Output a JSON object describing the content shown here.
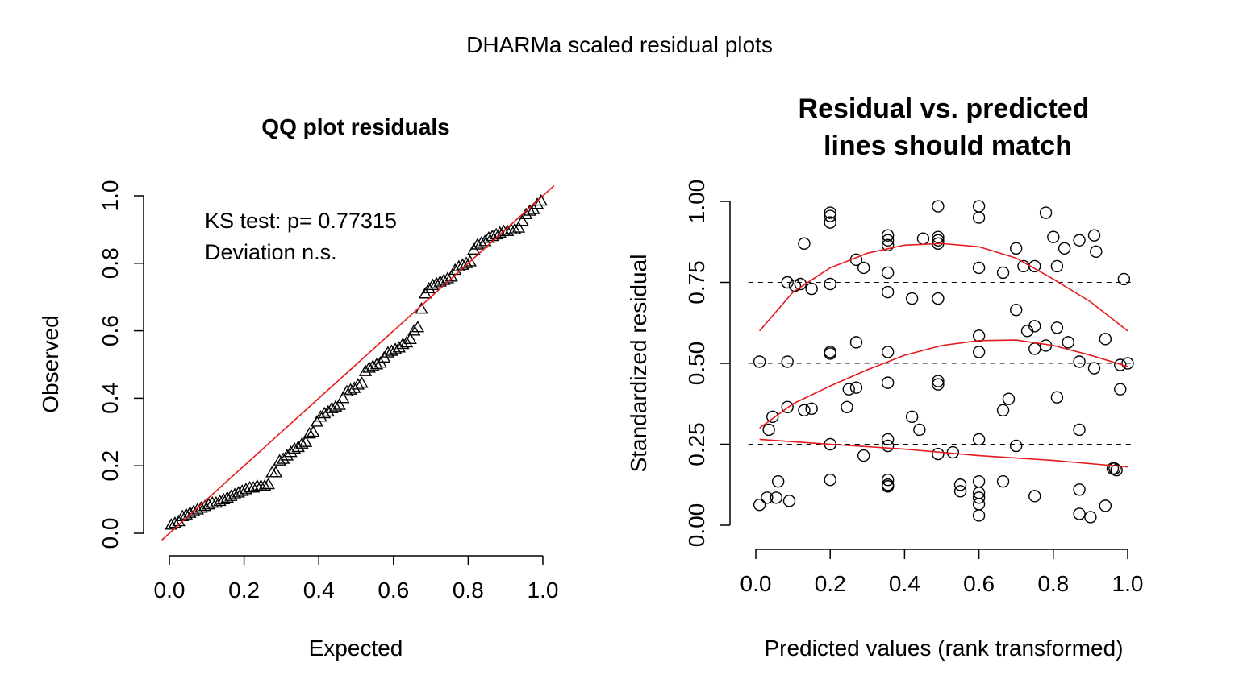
{
  "figure": {
    "title": "DHARMa scaled residual plots"
  },
  "chart_data": [
    {
      "type": "scatter",
      "title": "QQ plot residuals",
      "xlabel": "Expected",
      "ylabel": "Observed",
      "xlim": [
        0,
        1
      ],
      "ylim": [
        0,
        1
      ],
      "x_ticks": [
        "0.0",
        "0.2",
        "0.4",
        "0.6",
        "0.8",
        "1.0"
      ],
      "y_ticks": [
        "0.0",
        "0.2",
        "0.4",
        "0.6",
        "0.8",
        "1.0"
      ],
      "annotations": [
        "KS test: p= 0.77315",
        "Deviation  n.s."
      ],
      "marker": "triangle",
      "reference_line": {
        "from": [
          0,
          0
        ],
        "to": [
          1,
          1
        ],
        "color": "#e41a1c"
      },
      "qq_points_observed": [
        0.025,
        0.03,
        0.035,
        0.05,
        0.055,
        0.06,
        0.065,
        0.07,
        0.075,
        0.08,
        0.085,
        0.09,
        0.09,
        0.095,
        0.1,
        0.105,
        0.11,
        0.115,
        0.12,
        0.125,
        0.13,
        0.135,
        0.135,
        0.14,
        0.14,
        0.14,
        0.145,
        0.18,
        0.18,
        0.215,
        0.22,
        0.23,
        0.24,
        0.25,
        0.255,
        0.265,
        0.27,
        0.295,
        0.3,
        0.33,
        0.345,
        0.355,
        0.36,
        0.37,
        0.375,
        0.38,
        0.4,
        0.42,
        0.425,
        0.43,
        0.44,
        0.445,
        0.48,
        0.49,
        0.495,
        0.5,
        0.505,
        0.52,
        0.535,
        0.54,
        0.545,
        0.55,
        0.56,
        0.565,
        0.575,
        0.6,
        0.61,
        0.665,
        0.71,
        0.725,
        0.735,
        0.74,
        0.745,
        0.75,
        0.755,
        0.76,
        0.78,
        0.79,
        0.795,
        0.8,
        0.805,
        0.84,
        0.855,
        0.86,
        0.865,
        0.875,
        0.88,
        0.885,
        0.89,
        0.895,
        0.895,
        0.9,
        0.9,
        0.905,
        0.925,
        0.945,
        0.955,
        0.96,
        0.975,
        0.985
      ]
    },
    {
      "type": "scatter",
      "title": "Residual vs. predicted\nlines should match",
      "title_lines": [
        "Residual vs. predicted",
        "lines should match"
      ],
      "xlabel": "Predicted values (rank transformed)",
      "ylabel": "Standardized residual",
      "xlim": [
        0,
        1
      ],
      "ylim": [
        0,
        1
      ],
      "x_ticks": [
        "0.0",
        "0.2",
        "0.4",
        "0.6",
        "0.8",
        "1.0"
      ],
      "y_ticks": [
        "0.00",
        "0.25",
        "0.50",
        "0.75",
        "1.00"
      ],
      "reference_lines_y": [
        0.25,
        0.5,
        0.75
      ],
      "marker": "circle",
      "points": [
        [
          0.01,
          0.063
        ],
        [
          0.03,
          0.085
        ],
        [
          0.055,
          0.085
        ],
        [
          0.09,
          0.075
        ],
        [
          0.06,
          0.135
        ],
        [
          0.035,
          0.295
        ],
        [
          0.045,
          0.335
        ],
        [
          0.01,
          0.505
        ],
        [
          0.085,
          0.505
        ],
        [
          0.085,
          0.365
        ],
        [
          0.13,
          0.355
        ],
        [
          0.15,
          0.36
        ],
        [
          0.085,
          0.75
        ],
        [
          0.105,
          0.74
        ],
        [
          0.12,
          0.745
        ],
        [
          0.15,
          0.73
        ],
        [
          0.13,
          0.87
        ],
        [
          0.2,
          0.965
        ],
        [
          0.2,
          0.955
        ],
        [
          0.2,
          0.935
        ],
        [
          0.2,
          0.745
        ],
        [
          0.2,
          0.535
        ],
        [
          0.2,
          0.53
        ],
        [
          0.2,
          0.25
        ],
        [
          0.2,
          0.14
        ],
        [
          0.25,
          0.42
        ],
        [
          0.245,
          0.365
        ],
        [
          0.27,
          0.425
        ],
        [
          0.27,
          0.565
        ],
        [
          0.27,
          0.82
        ],
        [
          0.29,
          0.795
        ],
        [
          0.29,
          0.215
        ],
        [
          0.355,
          0.895
        ],
        [
          0.355,
          0.88
        ],
        [
          0.355,
          0.865
        ],
        [
          0.355,
          0.78
        ],
        [
          0.355,
          0.72
        ],
        [
          0.355,
          0.535
        ],
        [
          0.355,
          0.44
        ],
        [
          0.355,
          0.265
        ],
        [
          0.355,
          0.245
        ],
        [
          0.355,
          0.14
        ],
        [
          0.355,
          0.125
        ],
        [
          0.355,
          0.12
        ],
        [
          0.42,
          0.7
        ],
        [
          0.42,
          0.335
        ],
        [
          0.44,
          0.295
        ],
        [
          0.45,
          0.885
        ],
        [
          0.49,
          0.985
        ],
        [
          0.49,
          0.89
        ],
        [
          0.49,
          0.88
        ],
        [
          0.49,
          0.87
        ],
        [
          0.49,
          0.7
        ],
        [
          0.49,
          0.445
        ],
        [
          0.49,
          0.435
        ],
        [
          0.49,
          0.22
        ],
        [
          0.53,
          0.225
        ],
        [
          0.55,
          0.125
        ],
        [
          0.55,
          0.105
        ],
        [
          0.6,
          0.985
        ],
        [
          0.6,
          0.95
        ],
        [
          0.6,
          0.795
        ],
        [
          0.6,
          0.585
        ],
        [
          0.6,
          0.535
        ],
        [
          0.6,
          0.265
        ],
        [
          0.6,
          0.135
        ],
        [
          0.6,
          0.1
        ],
        [
          0.6,
          0.085
        ],
        [
          0.6,
          0.065
        ],
        [
          0.6,
          0.03
        ],
        [
          0.665,
          0.78
        ],
        [
          0.665,
          0.355
        ],
        [
          0.68,
          0.39
        ],
        [
          0.665,
          0.135
        ],
        [
          0.7,
          0.855
        ],
        [
          0.7,
          0.665
        ],
        [
          0.7,
          0.245
        ],
        [
          0.72,
          0.8
        ],
        [
          0.73,
          0.6
        ],
        [
          0.75,
          0.8
        ],
        [
          0.75,
          0.615
        ],
        [
          0.75,
          0.545
        ],
        [
          0.75,
          0.09
        ],
        [
          0.78,
          0.965
        ],
        [
          0.78,
          0.555
        ],
        [
          0.8,
          0.89
        ],
        [
          0.81,
          0.8
        ],
        [
          0.81,
          0.61
        ],
        [
          0.81,
          0.395
        ],
        [
          0.83,
          0.855
        ],
        [
          0.84,
          0.565
        ],
        [
          0.87,
          0.88
        ],
        [
          0.87,
          0.505
        ],
        [
          0.87,
          0.295
        ],
        [
          0.87,
          0.11
        ],
        [
          0.87,
          0.035
        ],
        [
          0.9,
          0.025
        ],
        [
          0.91,
          0.895
        ],
        [
          0.915,
          0.845
        ],
        [
          0.91,
          0.485
        ],
        [
          0.94,
          0.575
        ],
        [
          0.94,
          0.06
        ],
        [
          0.96,
          0.175
        ],
        [
          0.965,
          0.175
        ],
        [
          0.97,
          0.17
        ],
        [
          0.98,
          0.42
        ],
        [
          0.98,
          0.495
        ],
        [
          0.99,
          0.76
        ],
        [
          1.0,
          0.5
        ]
      ],
      "quantile_curves": [
        {
          "x": [
            0.01,
            0.1,
            0.2,
            0.3,
            0.4,
            0.5,
            0.6,
            0.7,
            0.8,
            0.9,
            1.0
          ],
          "y": [
            0.6,
            0.72,
            0.795,
            0.84,
            0.865,
            0.87,
            0.86,
            0.825,
            0.76,
            0.69,
            0.6
          ]
        },
        {
          "x": [
            0.01,
            0.1,
            0.2,
            0.3,
            0.4,
            0.5,
            0.6,
            0.7,
            0.8,
            0.9,
            1.0
          ],
          "y": [
            0.3,
            0.375,
            0.43,
            0.48,
            0.525,
            0.555,
            0.57,
            0.572,
            0.555,
            0.525,
            0.49
          ]
        },
        {
          "x": [
            0.01,
            0.2,
            0.4,
            0.6,
            0.8,
            1.0
          ],
          "y": [
            0.265,
            0.25,
            0.235,
            0.215,
            0.2,
            0.18
          ]
        }
      ],
      "curve_color": "#e41a1c"
    }
  ]
}
